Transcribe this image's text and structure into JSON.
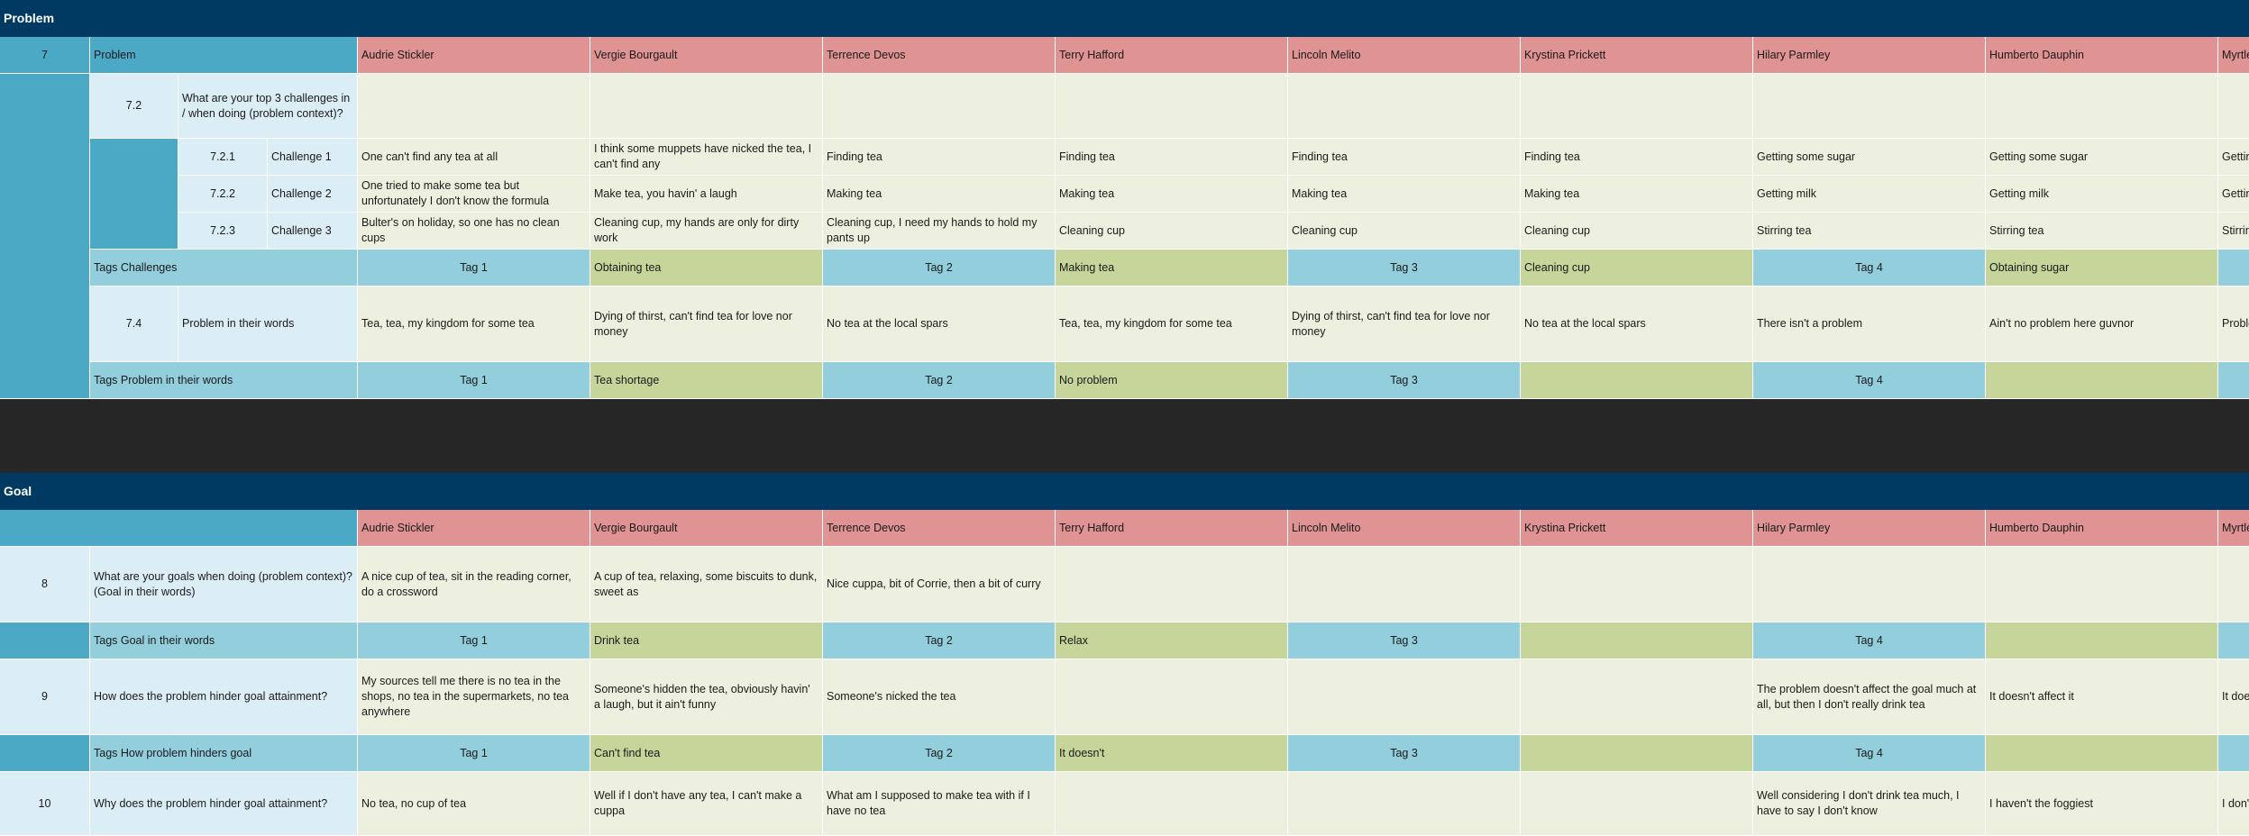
{
  "problem_section": {
    "title": "Problem",
    "row_number": "7",
    "row_label": "Problem",
    "q72": {
      "number": "7.2",
      "text": "What are your top 3 challenges in / when doing (problem context)?"
    },
    "challenges": [
      {
        "number": "7.2.1",
        "label": "Challenge 1"
      },
      {
        "number": "7.2.2",
        "label": "Challenge 2"
      },
      {
        "number": "7.2.3",
        "label": "Challenge 3"
      }
    ],
    "tags_challenges_label": "Tags Challenges",
    "q74": {
      "number": "7.4",
      "text": "Problem in their words"
    },
    "tags_problem_label": "Tags Problem in their words"
  },
  "goal_section": {
    "title": "Goal",
    "q8": {
      "number": "8",
      "text": "What are your goals when doing (problem context)? (Goal in their words)"
    },
    "tags_goal_label": "Tags Goal in their words",
    "q9": {
      "number": "9",
      "text": "How does the problem hinder goal attainment?"
    },
    "tags_hinder_label": "Tags How problem hinders goal",
    "q10": {
      "number": "10",
      "text": "Why does the problem hinder goal attainment?"
    }
  },
  "participants": [
    "Audrie Stickler",
    "Vergie Bourgault",
    "Terrence Devos",
    "Terry Hafford",
    "Lincoln Melito",
    "Krystina Prickett",
    "Hilary Parmley",
    "Humberto Dauphin",
    "Myrtle"
  ],
  "answers": {
    "challenge1": [
      "One can't find any tea at all",
      "I think some muppets have nicked the tea, I can't find any",
      "Finding tea",
      "Finding tea",
      "Finding tea",
      "Finding tea",
      "Getting some sugar",
      "Getting some sugar",
      "Getting"
    ],
    "challenge2": [
      "One tried to make some tea but unfortunately I don't know the formula",
      "Make tea, you havin' a laugh",
      "Making tea",
      "Making tea",
      "Making tea",
      "Making tea",
      "Getting milk",
      "Getting milk",
      "Getting"
    ],
    "challenge3": [
      "Bulter's on holiday, so one has no clean cups",
      "Cleaning cup, my hands are only for dirty work",
      "Cleaning cup, I need my hands to hold my pants up",
      "Cleaning cup",
      "Cleaning cup",
      "Cleaning cup",
      "Stirring tea",
      "Stirring tea",
      "Stirring"
    ],
    "tags_challenges": [
      "Tag 1",
      "Obtaining tea",
      "Tag 2",
      "Making tea",
      "Tag 3",
      "Cleaning cup",
      "Tag 4",
      "Obtaining sugar",
      ""
    ],
    "problem_words": [
      "Tea, tea, my kingdom for some tea",
      "Dying of thirst, can't find tea for love nor money",
      "No tea at the local spars",
      "Tea, tea, my kingdom for some tea",
      "Dying of thirst, can't find tea for love nor money",
      "No tea at the local spars",
      "There isn't a problem",
      "Ain't no problem here guvnor",
      "Problem"
    ],
    "tags_problem": [
      "Tag 1",
      "Tea shortage",
      "Tag 2",
      "No problem",
      "Tag 3",
      "",
      "Tag 4",
      "",
      ""
    ],
    "goal_words": [
      "A nice cup of tea, sit in the reading corner, do a crossword",
      "A cup of tea, relaxing, some biscuits to dunk, sweet as",
      "Nice cuppa, bit of Corrie, then a bit of curry",
      "",
      "",
      "",
      "",
      "",
      ""
    ],
    "tags_goal": [
      "Tag 1",
      "Drink tea",
      "Tag 2",
      "Relax",
      "Tag 3",
      "",
      "Tag 4",
      "",
      ""
    ],
    "hinder": [
      "My sources tell me there is  no tea in the shops, no tea in the supermarkets, no tea anywhere",
      "Someone's hidden the tea, obviously havin' a laugh, but it ain't funny",
      "Someone's nicked the tea",
      "",
      "",
      "",
      "The problem doesn't affect the goal much at all, but then I don't really drink tea",
      "It doesn't affect it",
      "It does"
    ],
    "tags_hinder": [
      "Tag 1",
      "Can't find tea",
      "Tag 2",
      "It doesn't",
      "Tag 3",
      "",
      "Tag 4",
      "",
      ""
    ],
    "why_hinder": [
      "No tea, no cup of tea",
      "Well if I don't have any tea, I can't make a cuppa",
      "What am I supposed to make tea with if I have no tea",
      "",
      "",
      "",
      "Well considering I don't drink tea much, I have to say I don't know",
      "I haven't the foggiest",
      "I don't"
    ]
  }
}
